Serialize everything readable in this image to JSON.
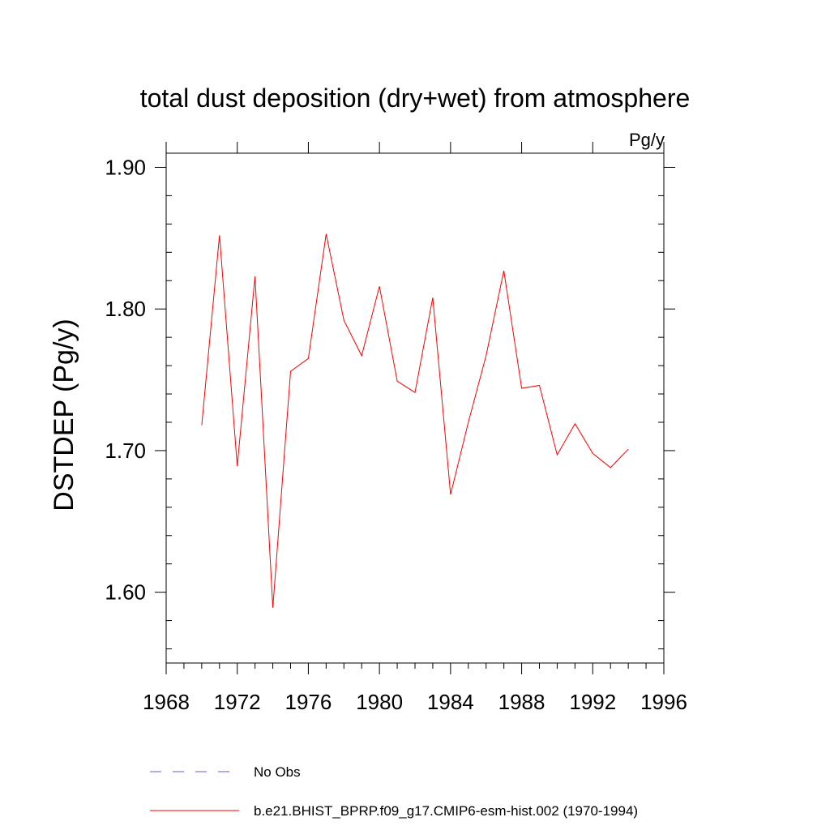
{
  "chart_data": {
    "type": "line",
    "title": "total dust deposition (dry+wet) from atmosphere",
    "units": "Pg/y",
    "ylabel": "DSTDEP  (Pg/y)",
    "xlabel": "",
    "xlim": [
      1968,
      1996
    ],
    "ylim": [
      1.55,
      1.91
    ],
    "xticks": [
      1968,
      1972,
      1976,
      1980,
      1984,
      1988,
      1992,
      1996
    ],
    "xtick_labels": [
      "1968",
      "1972",
      "1976",
      "1980",
      "1984",
      "1988",
      "1992",
      "1996"
    ],
    "yticks": [
      1.6,
      1.7,
      1.8,
      1.9
    ],
    "ytick_labels": [
      "1.60",
      "1.70",
      "1.80",
      "1.90"
    ],
    "grid": false,
    "legend_position": "bottom",
    "series": [
      {
        "name": "b.e21.BHIST_BPRP.f09_g17.CMIP6-esm-hist.002 (1970-1994)",
        "color": "#ff0000",
        "style": "solid",
        "x": [
          1970,
          1971,
          1972,
          1973,
          1974,
          1975,
          1976,
          1977,
          1978,
          1979,
          1980,
          1981,
          1982,
          1983,
          1984,
          1985,
          1986,
          1987,
          1988,
          1989,
          1990,
          1991,
          1992,
          1993,
          1994
        ],
        "y": [
          1.718,
          1.852,
          1.689,
          1.823,
          1.589,
          1.756,
          1.765,
          1.853,
          1.792,
          1.767,
          1.816,
          1.749,
          1.741,
          1.808,
          1.669,
          1.72,
          1.767,
          1.827,
          1.744,
          1.746,
          1.697,
          1.719,
          1.698,
          1.688,
          1.701
        ]
      }
    ],
    "legend": [
      {
        "label": "No Obs",
        "color": "#6a5acd",
        "style": "dashed"
      },
      {
        "label": "b.e21.BHIST_BPRP.f09_g17.CMIP6-esm-hist.002 (1970-1994)",
        "color": "#ff0000",
        "style": "solid"
      }
    ]
  }
}
